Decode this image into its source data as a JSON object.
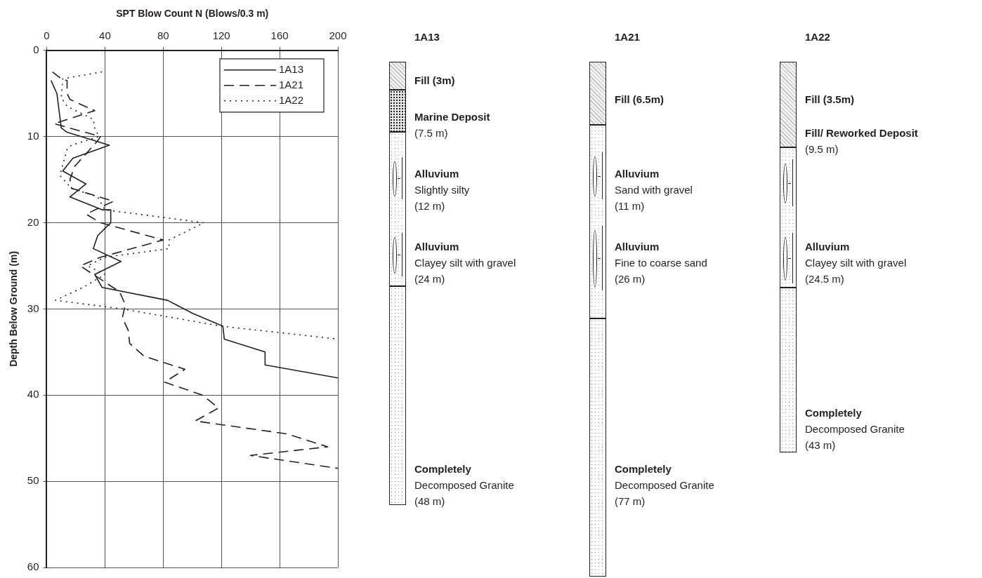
{
  "chart_data": [
    {
      "type": "line",
      "xlabel": "SPT Blow Count N (Blows/0.3 m)",
      "ylabel": "Depth Below Ground (m)",
      "xlim": [
        0,
        200
      ],
      "xticks": [
        0,
        40,
        80,
        120,
        160,
        200
      ],
      "ylim": [
        60,
        0
      ],
      "yticks": [
        0,
        10,
        20,
        30,
        40,
        50,
        60
      ],
      "grid": true,
      "legend": "top right",
      "marker": "none",
      "series": [
        {
          "name": "1A13",
          "color": "#231f20",
          "line_style": "solid",
          "x": [
            3,
            7,
            10,
            14,
            43,
            18,
            11,
            27,
            16,
            38,
            44,
            44,
            41,
            35,
            32,
            51,
            33,
            38,
            83,
            100,
            121,
            122,
            150,
            150,
            200
          ],
          "values": [
            3.5,
            5,
            9,
            9.5,
            11,
            12.5,
            14,
            15.5,
            17,
            18.5,
            18.5,
            20,
            20.5,
            21.5,
            23,
            24.5,
            26,
            27.5,
            29,
            30.5,
            32,
            33.5,
            35,
            36.5,
            38
          ]
        },
        {
          "name": "1A21",
          "color": "#231f20",
          "line_style": "dashed",
          "x": [
            4,
            10,
            14,
            14,
            16,
            33,
            5,
            37,
            35,
            19,
            16,
            17,
            36,
            46,
            27,
            37,
            80,
            37,
            23,
            50,
            54,
            52,
            56,
            57,
            67,
            95,
            81,
            107,
            118,
            102,
            165,
            193,
            140,
            200
          ],
          "values": [
            2.5,
            3.3,
            3.5,
            5,
            5.7,
            7,
            8.5,
            10,
            10.5,
            13.5,
            15,
            16,
            17,
            17.5,
            19,
            20,
            22,
            24,
            25,
            28,
            29.5,
            31,
            32.5,
            34,
            35.5,
            37,
            38.5,
            40,
            41.5,
            43,
            44.5,
            46,
            47,
            48.5
          ]
        },
        {
          "name": "1A22",
          "color": "#231f20",
          "line_style": "dotted",
          "x": [
            38,
            11,
            10,
            14,
            32,
            33,
            36,
            17,
            14,
            9,
            17,
            35,
            40,
            108,
            84,
            84,
            40,
            28,
            40,
            25,
            6,
            52,
            120,
            200
          ],
          "values": [
            2.5,
            3.3,
            5.5,
            6.5,
            8,
            9,
            10,
            11,
            11.5,
            14.5,
            16,
            17,
            18.5,
            20,
            22,
            23,
            24,
            25,
            26,
            27.5,
            29,
            30,
            32,
            33.5
          ]
        }
      ]
    },
    {
      "type": "other",
      "title": "1A13",
      "annotations": [
        "Fill (3m)",
        "Marine Deposit\n(7.5 m)",
        "Alluvium\nSlightly silty\n(12 m)",
        "Alluvium\nClayey silt with gravel\n(24 m)",
        "Completely\nDecomposed Granite\n(48 m)"
      ]
    },
    {
      "type": "other",
      "title": "1A21",
      "annotations": [
        "Fill (6.5m)",
        "Alluvium\nSand with gravel\n(11 m)",
        "Alluvium\nFine to coarse sand\n(26 m)",
        "Completely\nDecomposed Granite\n(77 m)"
      ]
    },
    {
      "type": "other",
      "title": "1A22",
      "annotations": [
        "Fill (3.5m)",
        "Fill/ Reworked Deposit\n(9.5 m)",
        "Alluvium\nClayey silt with gravel\n(24.5 m)",
        "Completely\nDecomposed Granite\n(43 m)"
      ]
    }
  ]
}
